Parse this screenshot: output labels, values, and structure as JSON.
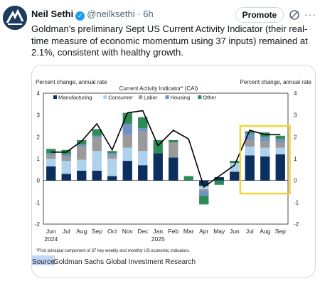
{
  "author": {
    "name": "Neil Sethi",
    "handle": "@neilksethi",
    "time": "6h"
  },
  "header": {
    "separator": "·",
    "promote_label": "Promote",
    "more_label": "···"
  },
  "tweet": {
    "text": "Goldman's preliminary Sept US Current Activity Indicator (their real-time measure of economic momentum using 37 inputs) remained at 2.1%, consistent with healthy growth."
  },
  "icons": {
    "avatar": "avatar-logo",
    "verified": "verified-badge-icon",
    "slash": "slash-icon",
    "more": "more-icon"
  },
  "colors": {
    "manufacturing": "#0b2f5e",
    "consumer": "#aed2ec",
    "labor": "#9a9a9a",
    "housing": "#6f93c1",
    "other": "#2e8b57",
    "cai_line": "#000000",
    "highlight": "#f3d33b"
  },
  "chart_data": {
    "type": "bar",
    "title": "Current Activity Indicator* (CAI)",
    "ylabel_left": "Percent change, annual rate",
    "ylabel_right": "Percent change, annual rate",
    "ylim": [
      -2,
      4
    ],
    "yticks": [
      "4",
      "3",
      "2",
      "1",
      "0",
      "-1",
      "-2"
    ],
    "categories": [
      "Jun",
      "Jul",
      "Aug",
      "Sep",
      "Oct",
      "Nov",
      "Dec",
      "Jan",
      "Feb",
      "Mar",
      "Apr",
      "May",
      "Jun",
      "Jul",
      "Aug",
      "Sep"
    ],
    "year_labels": [
      {
        "label": "2024",
        "index": 0
      },
      {
        "label": "2025",
        "index": 7
      }
    ],
    "legend": [
      "Manufacturing",
      "Consumer",
      "Labor",
      "Housing",
      "Other"
    ],
    "legend_placement": "top",
    "series": [
      {
        "name": "Manufacturing",
        "values": [
          0.65,
          0.3,
          0.45,
          0.45,
          0.2,
          0.9,
          0.7,
          1.25,
          1.05,
          0.0,
          -0.25,
          0.15,
          0.4,
          1.15,
          1.1,
          1.2
        ]
      },
      {
        "name": "Consumer",
        "values": [
          0.35,
          0.6,
          0.5,
          0.9,
          0.8,
          0.6,
          0.65,
          0.0,
          0.0,
          0.0,
          -0.15,
          0.0,
          0.4,
          0.4,
          0.4,
          0.3
        ]
      },
      {
        "name": "Labor",
        "values": [
          0.15,
          0.2,
          0.6,
          0.6,
          0.15,
          0.6,
          0.9,
          0.0,
          0.7,
          0.0,
          -0.1,
          0.0,
          0.0,
          0.3,
          0.3,
          0.25
        ]
      },
      {
        "name": "Housing",
        "values": [
          0.1,
          0.1,
          0.1,
          0.1,
          0.1,
          0.5,
          0.15,
          0.0,
          0.0,
          0.0,
          -0.2,
          0.0,
          0.0,
          0.3,
          0.2,
          0.15
        ]
      },
      {
        "name": "Other",
        "values": [
          0.2,
          0.2,
          0.2,
          0.3,
          0.1,
          0.5,
          0.5,
          0.6,
          0.1,
          0.2,
          -0.4,
          -0.2,
          0.1,
          0.1,
          0.2,
          0.15
        ]
      }
    ],
    "line": {
      "name": "CAI",
      "values": [
        1.3,
        1.3,
        1.8,
        2.6,
        1.4,
        3.1,
        3.2,
        1.6,
        2.3,
        1.9,
        -0.3,
        0.2,
        0.7,
        2.3,
        2.1,
        2.1
      ]
    },
    "highlight_range": [
      13,
      15
    ],
    "footnote": "*First principal component of 37 key weekly and monthly US economic indicators.",
    "source_label": "Source:",
    "source_text": " Goldman Sachs Global Investment Research"
  }
}
